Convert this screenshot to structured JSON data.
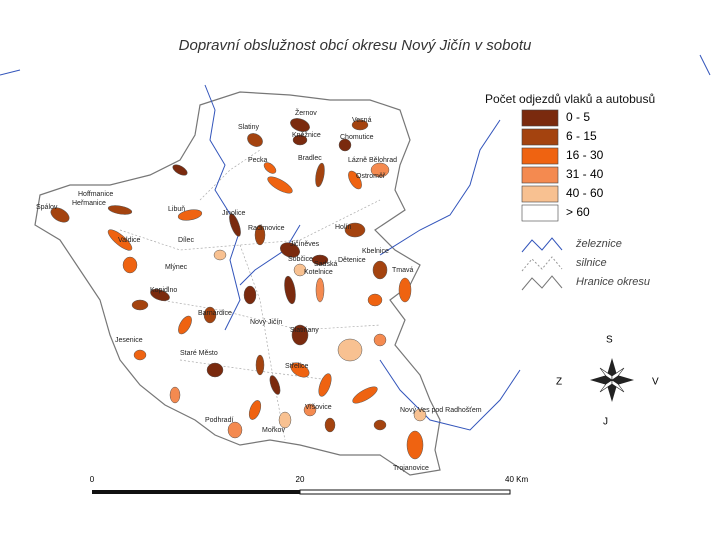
{
  "title": "Dopravní obslužnost obcí okresu Nový Jičín v sobotu",
  "legend": {
    "title": "Počet odjezdů vlaků a autobusů",
    "classes": [
      {
        "label": "0 - 5",
        "color": "#7a2a0e"
      },
      {
        "label": "6 - 15",
        "color": "#a4430f"
      },
      {
        "label": "16 - 30",
        "color": "#ef6311"
      },
      {
        "label": "31 - 40",
        "color": "#f48a50"
      },
      {
        "label": "40 - 60",
        "color": "#f8c191"
      },
      {
        "label": "> 60",
        "color": "#ffffff"
      }
    ],
    "lines": [
      "železnice",
      "silnice",
      "Hranice okresu"
    ]
  },
  "compass": {
    "north": "S",
    "west": "Z",
    "east": "V",
    "south": "J"
  },
  "scale": {
    "labels": [
      "0",
      "20",
      "40 Km"
    ]
  },
  "places": [
    "Žernov",
    "Vesná",
    "Slatiny",
    "Kněžnice",
    "Chomutice",
    "Pecka",
    "Bradlec",
    "Lázně Bělohrad",
    "Ostroměř",
    "Spálov",
    "Heřmanice",
    "Hoffmanice",
    "Libuň",
    "Jinolice",
    "Radimovice",
    "Holín",
    "Valdice",
    "Dílec",
    "Jičíněves",
    "Sobčice",
    "Kbelnice",
    "Tmavá",
    "Kotelnice",
    "Sadská",
    "Mlýnec",
    "Dětenice",
    "Kopidlno",
    "Barnardice",
    "Nový Jičín",
    "Slatiňany",
    "Jesenice",
    "Staré Město",
    "Střelice",
    "Podhradí",
    "Vršovice",
    "Mořkov",
    "Nový Ves pod Radhošťem",
    "Trojanovice"
  ]
}
